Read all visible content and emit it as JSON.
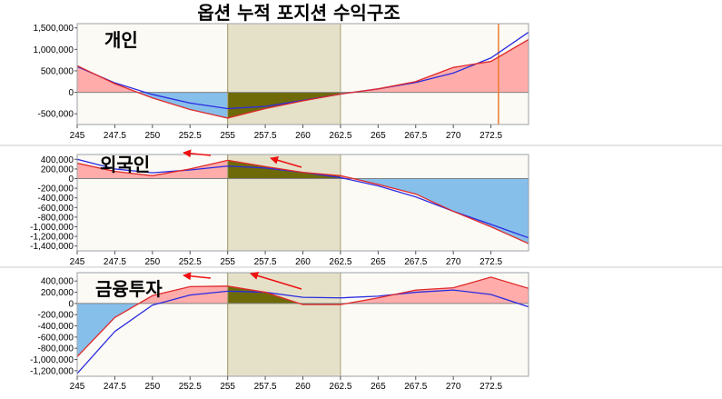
{
  "title": "옵션 누적 포지션 수익구조",
  "colors": {
    "plot_bg": "#fcfaf5",
    "profit_fill": "#ff9e9e",
    "loss_fill": "#7ab8ea",
    "blue_line": "#2b2be0",
    "red_line": "#e02a2a",
    "highlight_band": "#d9d4b0",
    "dark_fill": "#6e6a08",
    "vline": "#f07a30",
    "arrow": "#ee1111"
  },
  "chart_data": [
    {
      "type": "line",
      "label": "개인",
      "x_ticks": [
        "245",
        "247.5",
        "250",
        "252.5",
        "255",
        "257.5",
        "260",
        "262.5",
        "265",
        "267.5",
        "270",
        "272.5"
      ],
      "y_ticks": [
        "1,500,000",
        "1,000,000",
        "500,000",
        "0",
        "-500,000"
      ],
      "xlim": [
        245,
        275
      ],
      "ylim": [
        -750000,
        1600000
      ],
      "highlight_band": [
        255,
        262.5
      ],
      "vline": 273,
      "series": [
        {
          "color": "blue",
          "points": [
            [
              245,
              600000
            ],
            [
              247.5,
              220000
            ],
            [
              250,
              -50000
            ],
            [
              252.5,
              -250000
            ],
            [
              255,
              -380000
            ],
            [
              257.5,
              -330000
            ],
            [
              260,
              -190000
            ],
            [
              262.5,
              -40000
            ],
            [
              265,
              80000
            ],
            [
              267.5,
              230000
            ],
            [
              270,
              450000
            ],
            [
              272.5,
              800000
            ],
            [
              275,
              1400000
            ]
          ]
        },
        {
          "color": "red",
          "points": [
            [
              245,
              620000
            ],
            [
              247.5,
              200000
            ],
            [
              250,
              -130000
            ],
            [
              252.5,
              -400000
            ],
            [
              255,
              -600000
            ],
            [
              257.5,
              -380000
            ],
            [
              260,
              -200000
            ],
            [
              262.5,
              -40000
            ],
            [
              265,
              80000
            ],
            [
              267.5,
              250000
            ],
            [
              270,
              580000
            ],
            [
              272.5,
              720000
            ],
            [
              275,
              1230000
            ]
          ]
        }
      ]
    },
    {
      "type": "line",
      "label": "외국인",
      "x_ticks": [
        "245",
        "247.5",
        "250",
        "252.5",
        "255",
        "257.5",
        "260",
        "262.5",
        "265",
        "267.5",
        "270",
        "272.5"
      ],
      "y_ticks": [
        "400,000",
        "200,000",
        "0",
        "-200,000",
        "-400,000",
        "-600,000",
        "-800,000",
        "-1,000,000",
        "-1,200,000",
        "-1,400,000"
      ],
      "xlim": [
        245,
        275
      ],
      "ylim": [
        -1500000,
        500000
      ],
      "highlight_band": [
        255,
        262.5
      ],
      "series": [
        {
          "color": "blue",
          "points": [
            [
              245,
              400000
            ],
            [
              247.5,
              200000
            ],
            [
              250,
              120000
            ],
            [
              252.5,
              180000
            ],
            [
              255,
              260000
            ],
            [
              257.5,
              220000
            ],
            [
              260,
              130000
            ],
            [
              262.5,
              20000
            ],
            [
              265,
              -150000
            ],
            [
              267.5,
              -380000
            ],
            [
              270,
              -680000
            ],
            [
              272.5,
              -950000
            ],
            [
              275,
              -1230000
            ]
          ]
        },
        {
          "color": "red",
          "points": [
            [
              245,
              320000
            ],
            [
              247.5,
              150000
            ],
            [
              250,
              60000
            ],
            [
              252.5,
              200000
            ],
            [
              255,
              380000
            ],
            [
              257.5,
              250000
            ],
            [
              260,
              130000
            ],
            [
              262.5,
              60000
            ],
            [
              265,
              -120000
            ],
            [
              267.5,
              -320000
            ],
            [
              270,
              -680000
            ],
            [
              272.5,
              -1000000
            ],
            [
              275,
              -1350000
            ]
          ]
        }
      ]
    },
    {
      "type": "line",
      "label": "금융투자",
      "x_ticks": [
        "245",
        "247.5",
        "250",
        "252.5",
        "255",
        "257.5",
        "260",
        "262.5",
        "265",
        "267.5",
        "270",
        "272.5"
      ],
      "y_ticks": [
        "400,000",
        "200,000",
        "0",
        "-200,000",
        "-400,000",
        "-600,000",
        "-800,000",
        "-1,000,000",
        "-1,200,000"
      ],
      "xlim": [
        245,
        275
      ],
      "ylim": [
        -1300000,
        550000
      ],
      "highlight_band": [
        255,
        262.5
      ],
      "series": [
        {
          "color": "blue",
          "points": [
            [
              245,
              -1250000
            ],
            [
              247.5,
              -500000
            ],
            [
              250,
              -30000
            ],
            [
              252.5,
              150000
            ],
            [
              255,
              220000
            ],
            [
              257.5,
              200000
            ],
            [
              260,
              110000
            ],
            [
              262.5,
              100000
            ],
            [
              265,
              130000
            ],
            [
              267.5,
              200000
            ],
            [
              270,
              240000
            ],
            [
              272.5,
              160000
            ],
            [
              275,
              -60000
            ]
          ]
        },
        {
          "color": "red",
          "points": [
            [
              245,
              -950000
            ],
            [
              247.5,
              -250000
            ],
            [
              250,
              140000
            ],
            [
              252.5,
              300000
            ],
            [
              255,
              310000
            ],
            [
              257.5,
              200000
            ],
            [
              260,
              -20000
            ],
            [
              262.5,
              -20000
            ],
            [
              265,
              100000
            ],
            [
              267.5,
              240000
            ],
            [
              270,
              280000
            ],
            [
              272.5,
              470000
            ],
            [
              275,
              270000
            ]
          ]
        }
      ]
    }
  ]
}
